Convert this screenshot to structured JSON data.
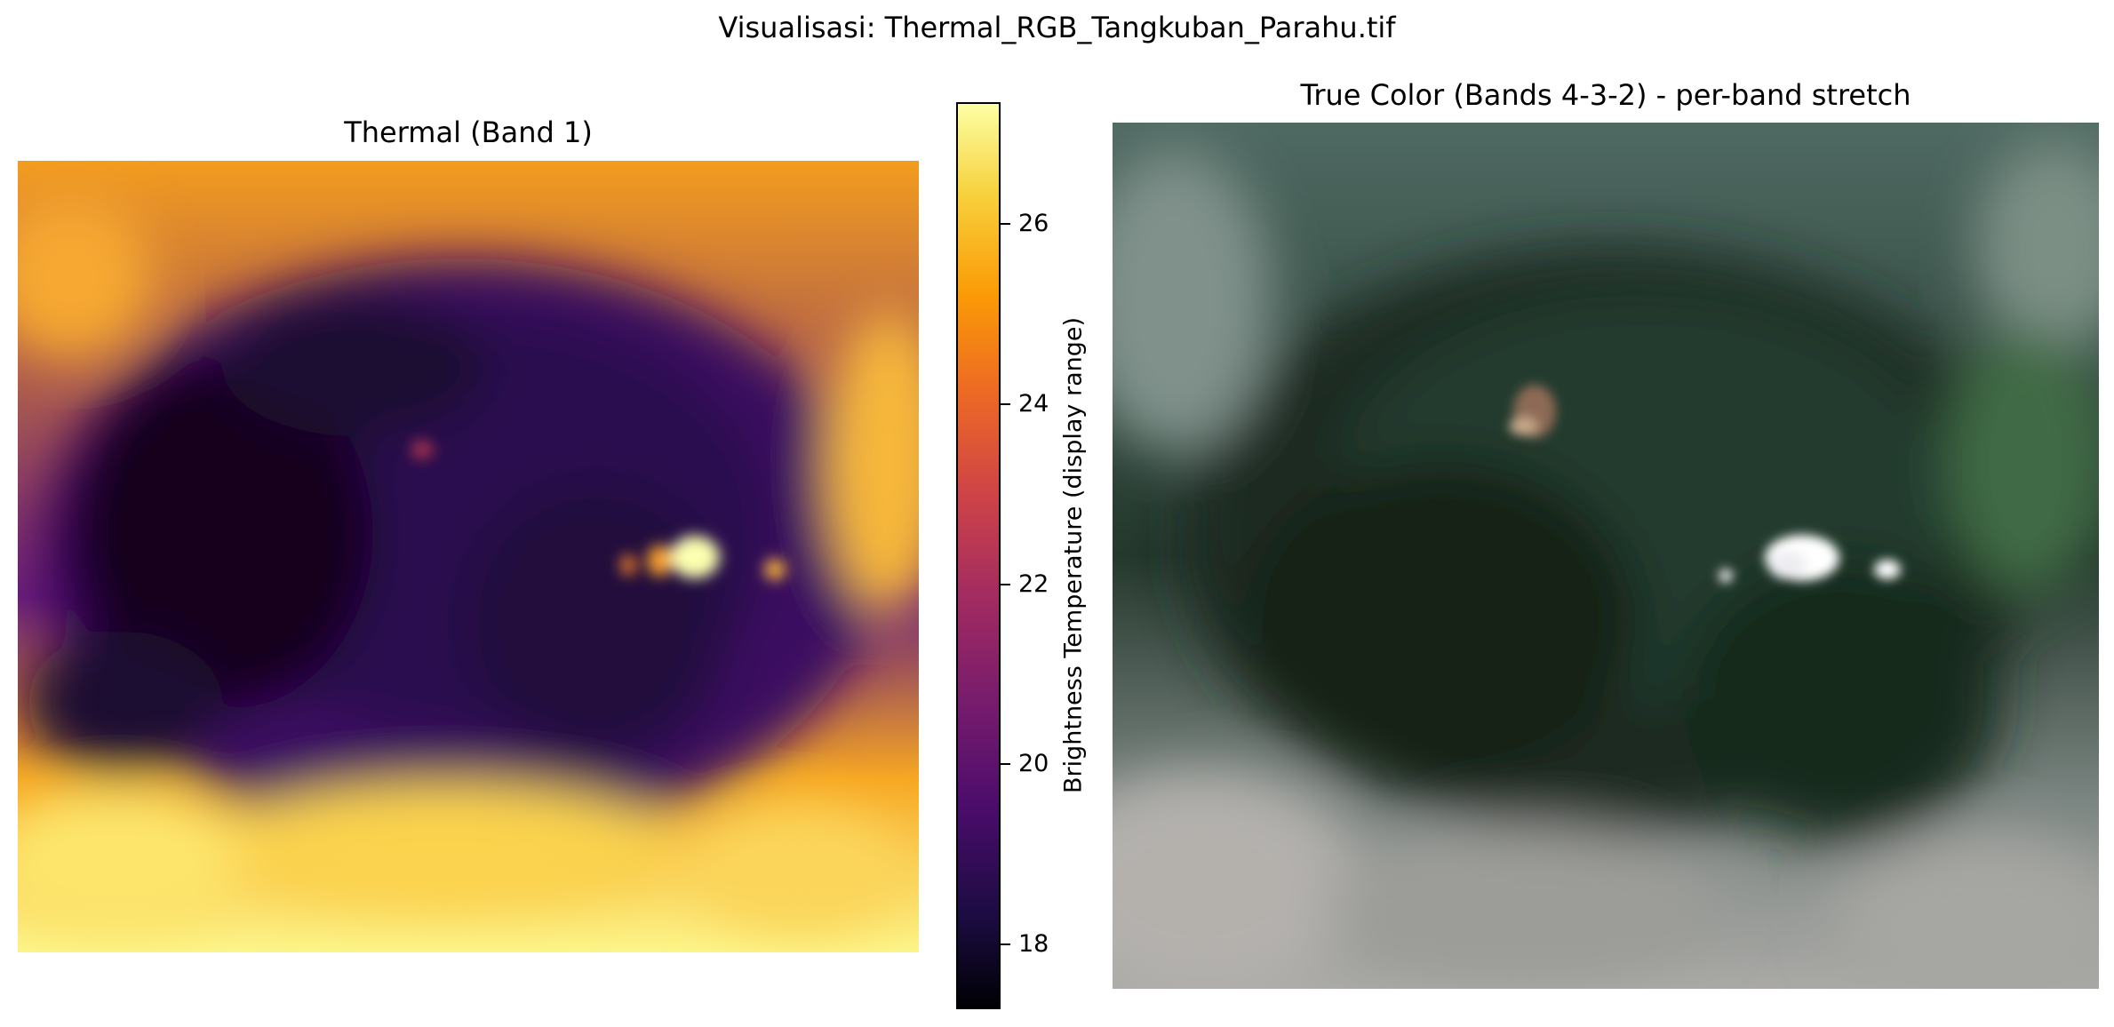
{
  "figure": {
    "suptitle": "Visualisasi: Thermal_RGB_Tangkuban_Parahu.tif"
  },
  "thermal_panel": {
    "title": "Thermal (Band 1)",
    "colormap": "inferno"
  },
  "rgb_panel": {
    "title": "True Color (Bands 4-3-2) - per-band stretch"
  },
  "colorbar": {
    "label": "Brightness Temperature (display range)",
    "ticks": [
      "18",
      "20",
      "22",
      "24",
      "26"
    ],
    "colors": [
      "#000004",
      "#1b0c41",
      "#4a0c6b",
      "#781c6d",
      "#a52c60",
      "#cf4446",
      "#ed6925",
      "#fb9b06",
      "#f7d13d",
      "#fcffa4"
    ]
  }
}
